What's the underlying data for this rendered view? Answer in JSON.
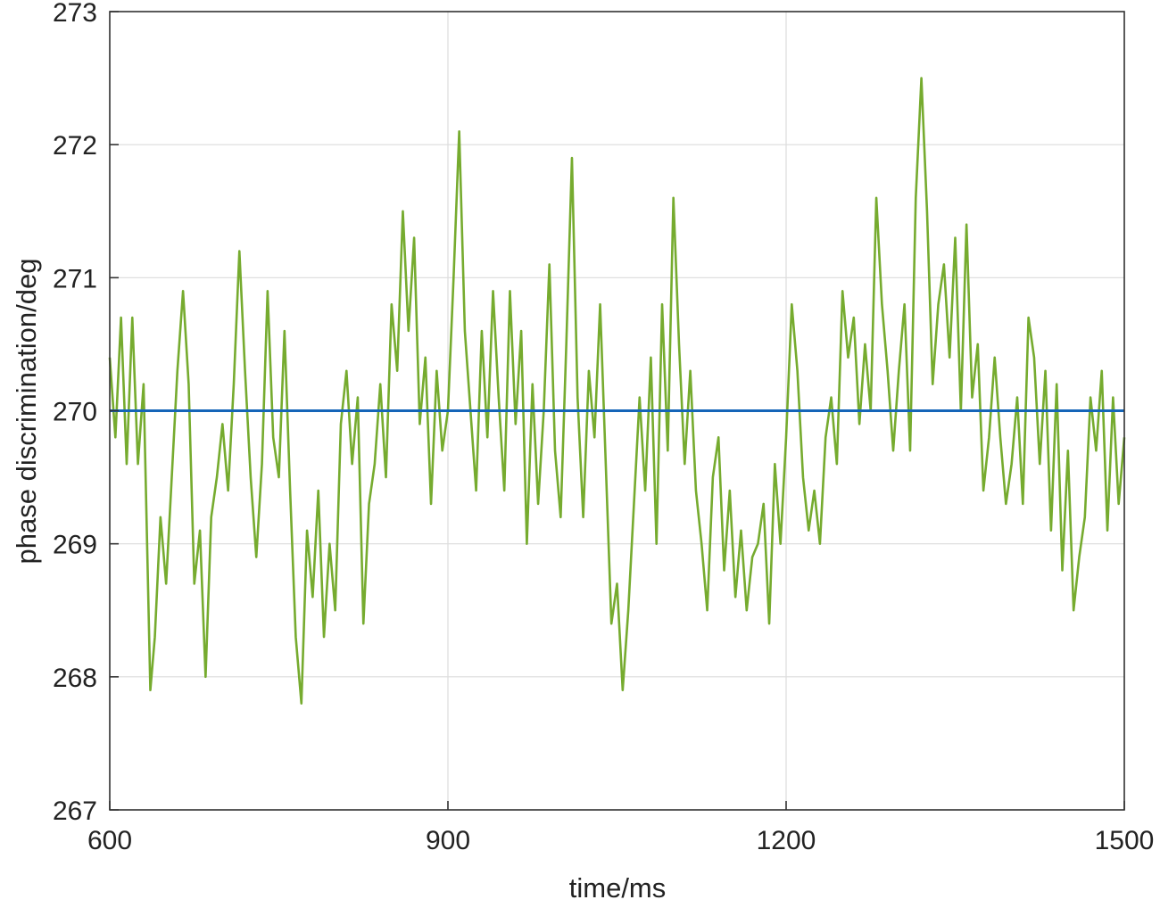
{
  "chart_data": {
    "type": "line",
    "title": "",
    "xlabel": "time/ms",
    "ylabel": "phase discrimination/deg",
    "xlim": [
      600,
      1500
    ],
    "ylim": [
      267,
      273
    ],
    "xticks": [
      600,
      900,
      1200,
      1500
    ],
    "yticks": [
      267,
      268,
      269,
      270,
      271,
      272,
      273
    ],
    "grid": true,
    "legend": "none",
    "colors": {
      "reference": "#1565b8",
      "measured": "#76ab2f",
      "grid": "#dcdcdc",
      "axis": "#333333"
    },
    "series": [
      {
        "x": [
          600,
          1500
        ],
        "y": [
          270.0,
          270.0
        ]
      },
      {
        "x": [
          600,
          605,
          610,
          615,
          620,
          625,
          630,
          636,
          640,
          645,
          650,
          655,
          660,
          665,
          670,
          675,
          680,
          685,
          690,
          695,
          700,
          705,
          710,
          715,
          720,
          725,
          730,
          735,
          740,
          745,
          750,
          755,
          760,
          765,
          770,
          775,
          780,
          785,
          790,
          795,
          800,
          805,
          810,
          815,
          820,
          825,
          830,
          835,
          840,
          845,
          850,
          855,
          860,
          865,
          870,
          875,
          880,
          885,
          890,
          895,
          900,
          905,
          910,
          915,
          920,
          925,
          930,
          935,
          940,
          945,
          950,
          955,
          960,
          965,
          970,
          975,
          980,
          985,
          990,
          995,
          1000,
          1005,
          1010,
          1015,
          1020,
          1025,
          1030,
          1035,
          1040,
          1045,
          1050,
          1055,
          1060,
          1065,
          1070,
          1075,
          1080,
          1085,
          1090,
          1095,
          1100,
          1105,
          1110,
          1115,
          1120,
          1125,
          1130,
          1135,
          1140,
          1145,
          1150,
          1155,
          1160,
          1165,
          1170,
          1175,
          1180,
          1185,
          1190,
          1195,
          1200,
          1205,
          1210,
          1215,
          1220,
          1225,
          1230,
          1235,
          1240,
          1245,
          1250,
          1255,
          1260,
          1265,
          1270,
          1275,
          1280,
          1285,
          1290,
          1295,
          1300,
          1305,
          1310,
          1315,
          1320,
          1325,
          1330,
          1335,
          1340,
          1345,
          1350,
          1355,
          1360,
          1365,
          1370,
          1375,
          1380,
          1385,
          1390,
          1395,
          1400,
          1405,
          1410,
          1415,
          1420,
          1425,
          1430,
          1435,
          1440,
          1445,
          1450,
          1455,
          1460,
          1465,
          1470,
          1475,
          1480,
          1485,
          1490,
          1495,
          1500
        ],
        "y": [
          270.4,
          269.8,
          270.7,
          269.6,
          270.7,
          269.6,
          270.2,
          267.9,
          268.3,
          269.2,
          268.7,
          269.5,
          270.3,
          270.9,
          270.2,
          268.7,
          269.1,
          268.0,
          269.2,
          269.5,
          269.9,
          269.4,
          270.2,
          271.2,
          270.3,
          269.5,
          268.9,
          269.6,
          270.9,
          269.8,
          269.5,
          270.6,
          269.4,
          268.3,
          267.8,
          269.1,
          268.6,
          269.4,
          268.3,
          269.0,
          268.5,
          269.9,
          270.3,
          269.6,
          270.1,
          268.4,
          269.3,
          269.6,
          270.2,
          269.5,
          270.8,
          270.3,
          271.5,
          270.6,
          271.3,
          269.9,
          270.4,
          269.3,
          270.3,
          269.7,
          270.0,
          271.0,
          272.1,
          270.6,
          270.0,
          269.4,
          270.6,
          269.8,
          270.9,
          270.1,
          269.4,
          270.9,
          269.9,
          270.6,
          269.0,
          270.2,
          269.3,
          270.0,
          271.1,
          269.7,
          269.2,
          270.5,
          271.9,
          270.1,
          269.2,
          270.3,
          269.8,
          270.8,
          269.6,
          268.4,
          268.7,
          267.9,
          268.5,
          269.3,
          270.1,
          269.4,
          270.4,
          269.0,
          270.8,
          269.7,
          271.6,
          270.5,
          269.6,
          270.3,
          269.4,
          269.0,
          268.5,
          269.5,
          269.8,
          268.8,
          269.4,
          268.6,
          269.1,
          268.5,
          268.9,
          269.0,
          269.3,
          268.4,
          269.6,
          269.0,
          269.8,
          270.8,
          270.3,
          269.5,
          269.1,
          269.4,
          269.0,
          269.8,
          270.1,
          269.6,
          270.9,
          270.4,
          270.7,
          269.9,
          270.5,
          270.0,
          271.6,
          270.8,
          270.3,
          269.7,
          270.3,
          270.8,
          269.7,
          271.6,
          272.5,
          271.5,
          270.2,
          270.8,
          271.1,
          270.4,
          271.3,
          270.0,
          271.4,
          270.1,
          270.5,
          269.4,
          269.8,
          270.4,
          269.8,
          269.3,
          269.6,
          270.1,
          269.3,
          270.7,
          270.4,
          269.6,
          270.3,
          269.1,
          270.2,
          268.8,
          269.7,
          268.5,
          268.9,
          269.2,
          270.1,
          269.7,
          270.3,
          269.1,
          270.1,
          269.3,
          269.8
        ]
      }
    ]
  }
}
